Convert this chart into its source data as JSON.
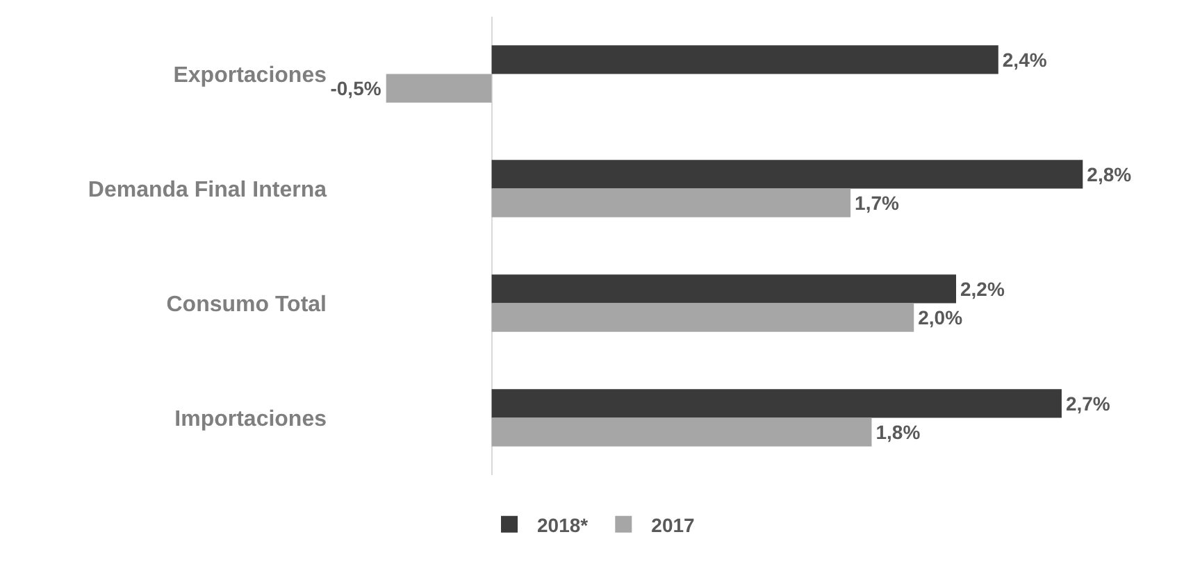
{
  "chart_data": {
    "type": "bar",
    "orientation": "horizontal",
    "categories": [
      "Exportaciones",
      "Demanda Final Interna",
      "Consumo Total",
      "Importaciones"
    ],
    "series": [
      {
        "name": "2018*",
        "color": "#3a3a3a",
        "values": [
          2.4,
          2.8,
          2.2,
          2.7
        ],
        "value_labels": [
          "2,4%",
          "2,8%",
          "2,2%",
          "2,7%"
        ]
      },
      {
        "name": "2017",
        "color": "#a6a6a6",
        "values": [
          -0.5,
          1.7,
          2.0,
          1.8
        ],
        "value_labels": [
          "-0,5%",
          "1,7%",
          "2,0%",
          "1,8%"
        ]
      }
    ],
    "legend": "bottom",
    "grid": false
  }
}
